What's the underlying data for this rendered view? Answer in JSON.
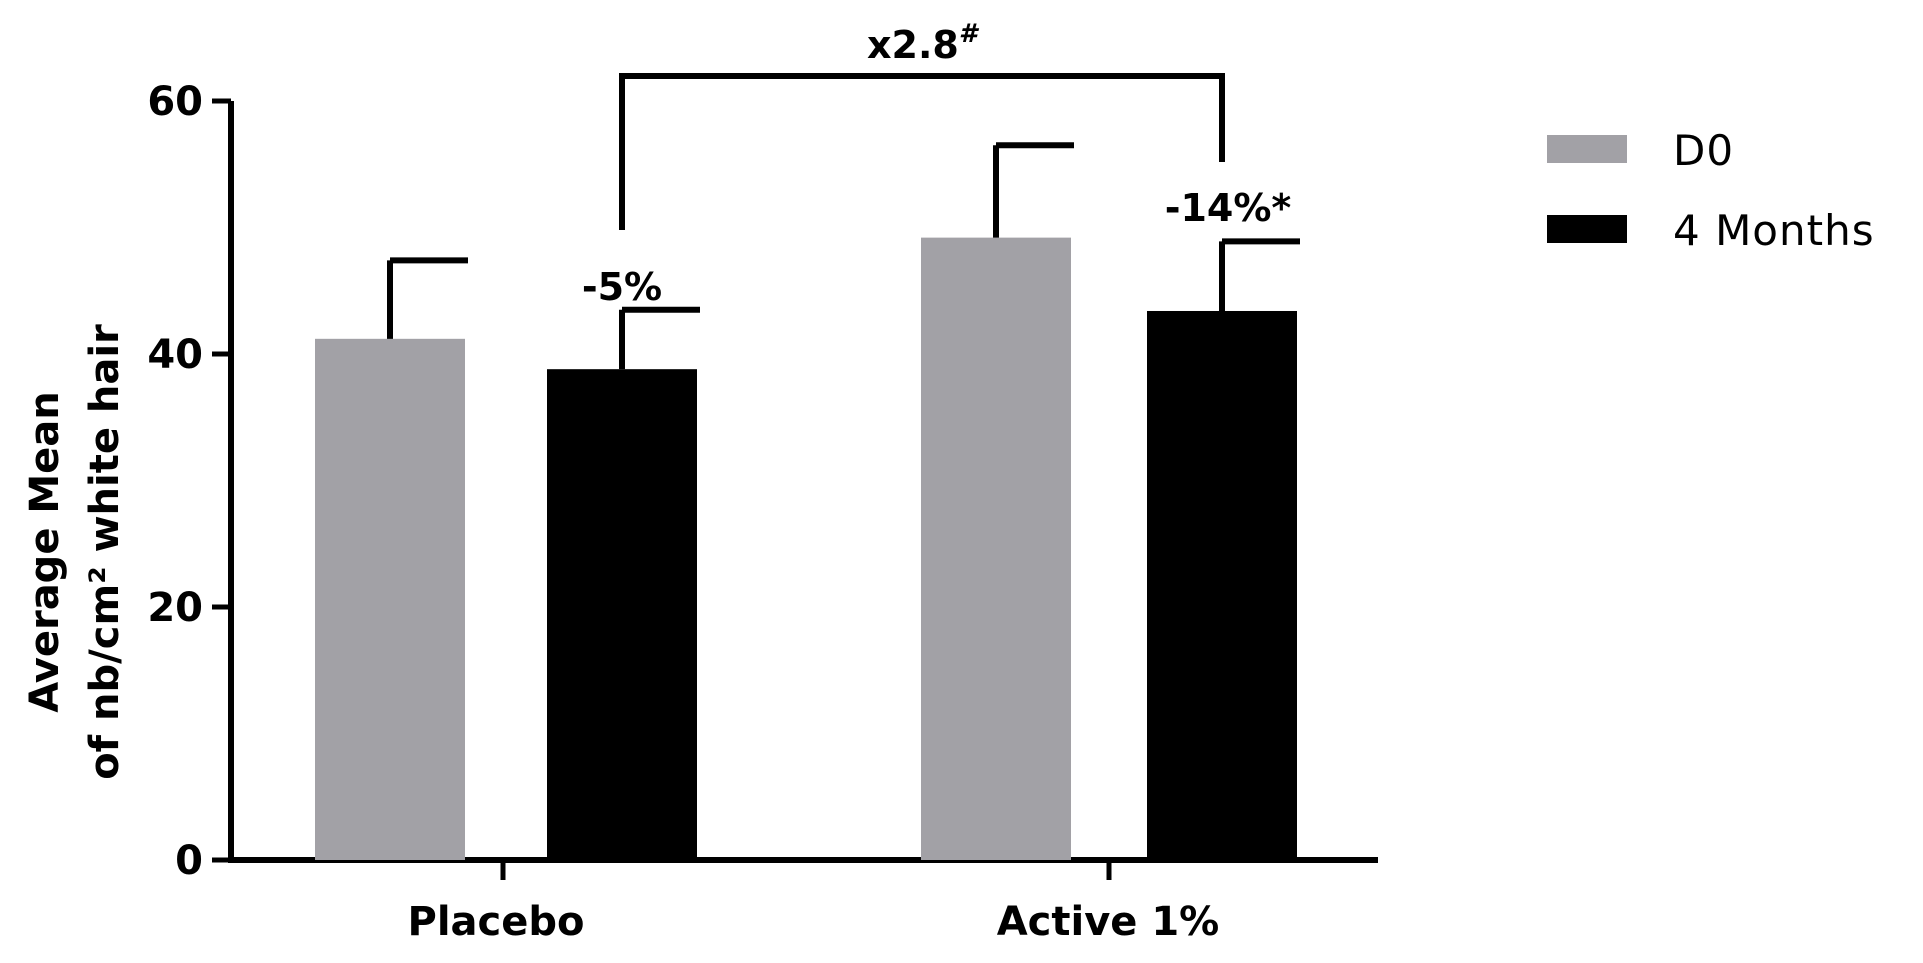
{
  "chart_data": {
    "type": "bar",
    "categories": [
      "Placebo",
      "Active 1%"
    ],
    "series": [
      {
        "name": "D0",
        "values": [
          41.2,
          49.2
        ],
        "errors": [
          6.2,
          7.3
        ],
        "color": "#a2a1a6"
      },
      {
        "name": "4 Months",
        "values": [
          38.8,
          43.4
        ],
        "errors": [
          4.7,
          5.5
        ],
        "color": "#000000"
      }
    ],
    "ylabel_line1": "Average Mean",
    "ylabel_line2": "of nb/cm² white hair",
    "xlabel": "",
    "ylim": [
      0,
      60
    ],
    "yticks": [
      0,
      20,
      40,
      60
    ],
    "grid": false,
    "legend_position": "top-right",
    "annotations": {
      "placebo_change": "-5%",
      "active_change": "-14%*",
      "comparison": "x2.8",
      "comparison_superscript": "#"
    }
  }
}
